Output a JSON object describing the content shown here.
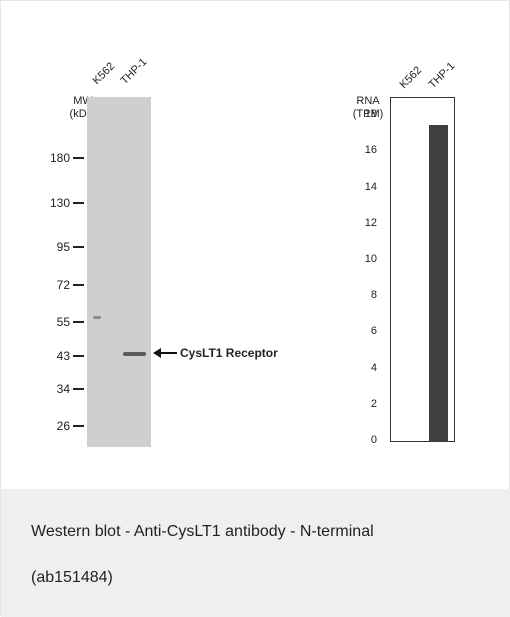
{
  "western_blot": {
    "mw_title": "MW\n(kDa)",
    "lanes": [
      "K562",
      "THP-1"
    ],
    "markers": [
      {
        "label": "180",
        "kda": 180
      },
      {
        "label": "130",
        "kda": 130
      },
      {
        "label": "95",
        "kda": 95
      },
      {
        "label": "72",
        "kda": 72
      },
      {
        "label": "55",
        "kda": 55
      },
      {
        "label": "43",
        "kda": 43
      },
      {
        "label": "34",
        "kda": 34
      },
      {
        "label": "26",
        "kda": 26
      }
    ],
    "target_label": "CysLT1 Receptor"
  },
  "rna_chart": {
    "title": "RNA\n(TPM)",
    "lanes": [
      "K562",
      "THP-1"
    ],
    "ticks": [
      "18",
      "16",
      "14",
      "12",
      "10",
      "8",
      "6",
      "4",
      "2",
      "0"
    ]
  },
  "chart_data": {
    "type": "bar",
    "categories": [
      "K562",
      "THP-1"
    ],
    "values": [
      0,
      17.5
    ],
    "title": "",
    "xlabel": "",
    "ylabel": "RNA (TPM)",
    "ylim": [
      0,
      19
    ],
    "grid": false
  },
  "caption": {
    "line1": "Western blot - Anti-CysLT1 antibody - N-terminal",
    "line2": "(ab151484)"
  }
}
